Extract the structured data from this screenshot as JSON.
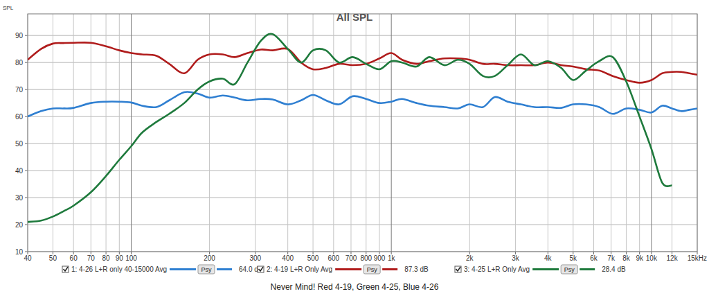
{
  "chart_data": {
    "type": "line",
    "title": "All SPL",
    "y_label": "SPL",
    "caption": "Never Mind! Red 4-19, Green 4-25, Blue 4-26",
    "log": "x",
    "grid": true,
    "legend": "bottom",
    "xlim": [
      40,
      15000
    ],
    "ylim": [
      10,
      98
    ],
    "xticks": [
      40,
      50,
      60,
      70,
      80,
      90,
      100,
      200,
      300,
      400,
      500,
      600,
      700,
      800,
      900,
      {
        "value": 1000,
        "label": "1k"
      },
      {
        "value": 2000,
        "label": "2k"
      },
      {
        "value": 3000,
        "label": "3k"
      },
      {
        "value": 4000,
        "label": "4k"
      },
      {
        "value": 5000,
        "label": "5k"
      },
      {
        "value": 6000,
        "label": "6k"
      },
      {
        "value": 7000,
        "label": "7k"
      },
      {
        "value": 8000,
        "label": "8k"
      },
      {
        "value": 9000,
        "label": "9k"
      },
      {
        "value": 10000,
        "label": "10k"
      },
      {
        "value": 12000,
        "label": "12k"
      },
      {
        "value": 15000,
        "label": "15kHz"
      }
    ],
    "yticks": [
      10,
      20,
      30,
      40,
      50,
      60,
      70,
      80,
      90
    ],
    "x": [
      40,
      45,
      50,
      55,
      60,
      70,
      80,
      90,
      100,
      110,
      125,
      140,
      160,
      180,
      200,
      225,
      250,
      280,
      315,
      350,
      400,
      450,
      500,
      560,
      630,
      710,
      800,
      900,
      1000,
      1100,
      1250,
      1400,
      1600,
      1800,
      2000,
      2250,
      2500,
      2800,
      3150,
      3550,
      4000,
      4500,
      5000,
      5600,
      6300,
      7100,
      8000,
      9000,
      10000,
      11000,
      12000,
      13000,
      14000,
      15000
    ],
    "series": [
      {
        "name": "1: 4-26 L+R only 40-15000 Avg",
        "color": "#2f7fd1",
        "smoothing": "Psy",
        "level_label": "64.0 dB",
        "values": [
          60,
          62,
          63,
          63,
          63.2,
          65,
          65.5,
          65.5,
          65.2,
          64,
          63.5,
          66,
          69,
          68.5,
          67,
          67.8,
          67,
          66,
          66.5,
          66.3,
          64.5,
          66,
          68,
          66,
          64.5,
          67.5,
          66.5,
          65,
          65.5,
          66.5,
          65,
          64,
          63.5,
          63,
          64.5,
          63.5,
          67.2,
          65.5,
          64.5,
          63.5,
          63.5,
          63.2,
          64.5,
          64.5,
          63.5,
          61,
          63,
          62.5,
          61.5,
          64,
          63,
          62,
          62.5,
          63
        ]
      },
      {
        "name": "2: 4-19 L+R Only Avg",
        "color": "#b01c1c",
        "smoothing": "Psy",
        "level_label": "87.3 dB",
        "values": [
          81,
          85,
          87,
          87.2,
          87.3,
          87.3,
          86,
          84.5,
          83.5,
          83,
          82.5,
          79.5,
          76,
          81,
          83,
          83,
          82,
          83.5,
          84.8,
          84.5,
          85,
          80,
          77.5,
          78,
          79.5,
          79,
          79.5,
          81.5,
          83.5,
          81,
          79.5,
          80.5,
          81.5,
          81.5,
          81,
          79.5,
          79.5,
          79,
          79,
          79,
          80,
          79,
          78.5,
          77.5,
          77,
          75,
          73.5,
          72.5,
          73.5,
          76,
          76.5,
          76.5,
          76,
          75.5
        ]
      },
      {
        "name": "3: 4-25 L+R Only Avg",
        "color": "#1e7a3c",
        "smoothing": "Psy",
        "level_label": "28.4 dB",
        "values": [
          21,
          21.5,
          23,
          25,
          27,
          32,
          38,
          44,
          49,
          54,
          58,
          61,
          65,
          70,
          73,
          74,
          72,
          80,
          88,
          90.5,
          85,
          80,
          84.5,
          84.5,
          80,
          82,
          79.5,
          77.5,
          80.5,
          80,
          78.5,
          82,
          79,
          81,
          79.5,
          75,
          75,
          79,
          83,
          79,
          80.5,
          78,
          73.5,
          77,
          80.5,
          82,
          73,
          60,
          48,
          35.5,
          34.5,
          null,
          null,
          null
        ]
      }
    ]
  }
}
